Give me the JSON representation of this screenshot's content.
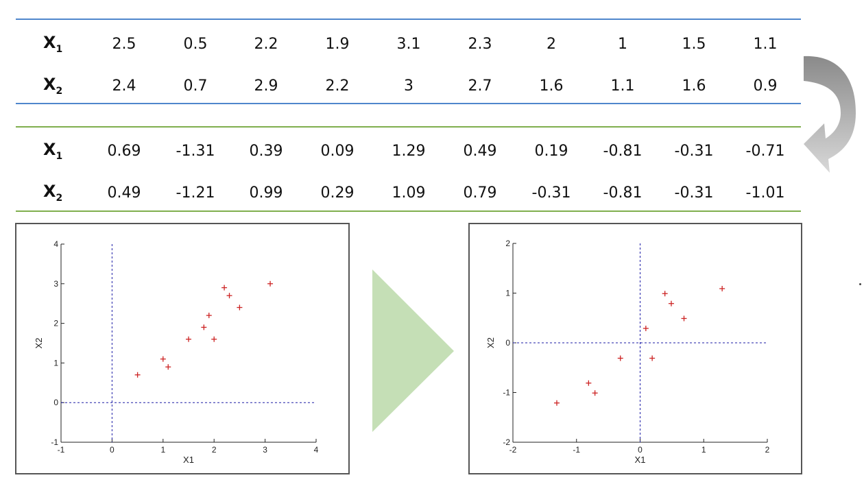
{
  "table_original": {
    "rows": [
      {
        "label": "X",
        "sub": "1",
        "values": [
          "2.5",
          "0.5",
          "2.2",
          "1.9",
          "3.1",
          "2.3",
          "2",
          "1",
          "1.5",
          "1.1"
        ]
      },
      {
        "label": "X",
        "sub": "2",
        "values": [
          "2.4",
          "0.7",
          "2.9",
          "2.2",
          "3",
          "2.7",
          "1.6",
          "1.1",
          "1.6",
          "0.9"
        ]
      }
    ]
  },
  "table_centered": {
    "rows": [
      {
        "label": "X",
        "sub": "1",
        "values": [
          "0.69",
          "-1.31",
          "0.39",
          "0.09",
          "1.29",
          "0.49",
          "0.19",
          "-0.81",
          "-0.31",
          "-0.71"
        ]
      },
      {
        "label": "X",
        "sub": "2",
        "values": [
          "0.49",
          "-1.21",
          "0.99",
          "0.29",
          "1.09",
          "0.79",
          "-0.31",
          "-0.81",
          "-0.31",
          "-1.01"
        ]
      }
    ]
  },
  "colors": {
    "blue_rule": "#4f86cc",
    "green_rule": "#7fae4d",
    "points": "#cc2222",
    "axes_dashed": "#1a1aa6",
    "triangle": "#c5dfb6",
    "curved_arrow": "#9a9a9a"
  },
  "chart_data": [
    {
      "type": "scatter",
      "xlabel": "X1",
      "ylabel": "X2",
      "xlim": [
        -1,
        4
      ],
      "ylim": [
        -1,
        4
      ],
      "xticks": [
        "-1",
        "0",
        "1",
        "2",
        "3",
        "4"
      ],
      "yticks": [
        "-1",
        "0",
        "1",
        "2",
        "3",
        "4"
      ],
      "grid": false,
      "marker": "+",
      "zero_lines": "dashed",
      "x": [
        2.5,
        0.5,
        2.2,
        1.9,
        3.1,
        2.3,
        2,
        1,
        1.5,
        1.1,
        1.8
      ],
      "y": [
        2.4,
        0.7,
        2.9,
        2.2,
        3,
        2.7,
        1.6,
        1.1,
        1.6,
        0.9,
        1.9
      ]
    },
    {
      "type": "scatter",
      "xlabel": "X1",
      "ylabel": "X2",
      "xlim": [
        -2,
        2
      ],
      "ylim": [
        -2,
        2
      ],
      "xticks": [
        "-2",
        "-1",
        "0",
        "1",
        "2"
      ],
      "yticks": [
        "-2",
        "-1",
        "0",
        "1",
        "2"
      ],
      "grid": false,
      "marker": "+",
      "zero_lines": "dashed",
      "x": [
        0.69,
        -1.31,
        0.39,
        0.09,
        1.29,
        0.49,
        0.19,
        -0.81,
        -0.31,
        -0.71
      ],
      "y": [
        0.49,
        -1.21,
        0.99,
        0.29,
        1.09,
        0.79,
        -0.31,
        -0.81,
        -0.31,
        -1.01
      ]
    }
  ]
}
